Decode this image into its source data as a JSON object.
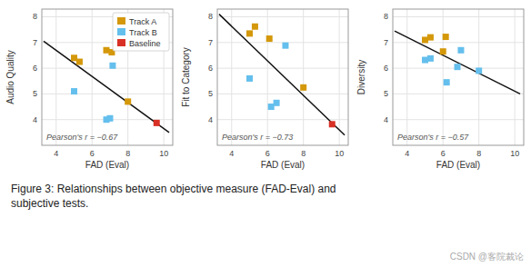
{
  "chart_data": [
    {
      "type": "scatter",
      "xlabel": "FAD (Eval)",
      "ylabel": "Audio Quality",
      "annotation": "Pearson's r = −0.67",
      "xlim": [
        3.2,
        10.5
      ],
      "ylim": [
        3.0,
        8.3
      ],
      "xticks": [
        4,
        6,
        8,
        10
      ],
      "yticks": [
        4,
        5,
        6,
        7,
        8
      ],
      "grid": true,
      "legend": "upper right",
      "series": [
        {
          "name": "Track A",
          "color": "#D4980A",
          "marker": "square",
          "x": [
            5.0,
            5.3,
            6.8,
            7.1,
            8.0
          ],
          "values": [
            6.4,
            6.25,
            6.7,
            6.62,
            4.7
          ]
        },
        {
          "name": "Track B",
          "color": "#64BFED",
          "marker": "square",
          "x": [
            5.0,
            6.8,
            7.0,
            7.15
          ],
          "values": [
            5.1,
            4.0,
            4.05,
            6.1
          ]
        },
        {
          "name": "Baseline",
          "color": "#D93025",
          "marker": "square",
          "x": [
            9.6
          ],
          "values": [
            3.87
          ]
        },
        {
          "type": "line",
          "color": "#111111",
          "x": [
            3.3,
            10.3
          ],
          "values": [
            7.05,
            3.5
          ]
        }
      ]
    },
    {
      "type": "scatter",
      "xlabel": "FAD (Eval)",
      "ylabel": "Fit to Category",
      "annotation": "Pearson's r = −0.73",
      "xlim": [
        3.2,
        10.5
      ],
      "ylim": [
        3.0,
        8.3
      ],
      "xticks": [
        4,
        6,
        8,
        10
      ],
      "yticks": [
        4,
        5,
        6,
        7,
        8
      ],
      "grid": true,
      "series": [
        {
          "color": "#D4980A",
          "marker": "square",
          "x": [
            5.0,
            5.3,
            6.1,
            8.0
          ],
          "values": [
            7.35,
            7.62,
            7.15,
            5.25
          ]
        },
        {
          "color": "#64BFED",
          "marker": "square",
          "x": [
            5.0,
            6.2,
            6.5,
            7.0
          ],
          "values": [
            5.6,
            4.5,
            4.65,
            6.88
          ]
        },
        {
          "color": "#D93025",
          "marker": "square",
          "x": [
            9.6
          ],
          "values": [
            3.82
          ]
        },
        {
          "type": "line",
          "color": "#111111",
          "x": [
            3.3,
            10.3
          ],
          "values": [
            8.1,
            3.4
          ]
        }
      ]
    },
    {
      "type": "scatter",
      "xlabel": "FAD (Eval)",
      "ylabel": "Diversity",
      "annotation": "Pearson's r = −0.57",
      "xlim": [
        3.2,
        10.5
      ],
      "ylim": [
        3.0,
        8.3
      ],
      "xticks": [
        4,
        6,
        8,
        10
      ],
      "yticks": [
        4,
        5,
        6,
        7,
        8
      ],
      "grid": true,
      "series": [
        {
          "color": "#D4980A",
          "marker": "square",
          "x": [
            5.0,
            5.3,
            6.0,
            6.15
          ],
          "values": [
            7.1,
            7.2,
            6.65,
            7.22
          ]
        },
        {
          "color": "#64BFED",
          "marker": "square",
          "x": [
            5.0,
            5.3,
            6.2,
            6.8,
            7.0,
            8.0
          ],
          "values": [
            6.32,
            6.38,
            5.45,
            6.05,
            6.7,
            5.9
          ]
        },
        {
          "type": "line",
          "color": "#111111",
          "x": [
            3.3,
            10.3
          ],
          "values": [
            7.45,
            5.0
          ]
        }
      ]
    }
  ],
  "caption": [
    "Figure 3: Relationships between objective measure (FAD-Eval) and",
    "subjective tests."
  ],
  "watermark": "CSDN @客院裁论"
}
